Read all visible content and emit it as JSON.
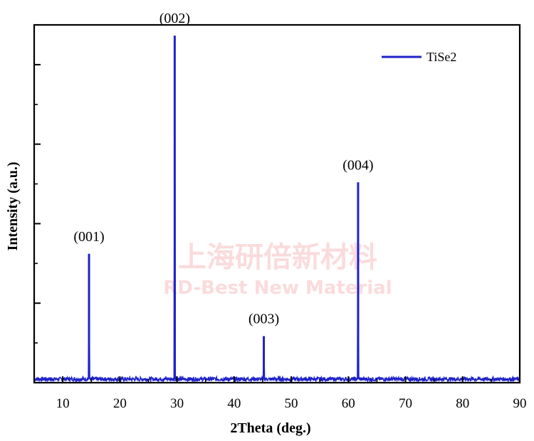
{
  "chart_data": {
    "type": "line",
    "xlabel": "2Theta (deg.)",
    "ylabel": "Intensity (a.u.)",
    "xlim": [
      5,
      90
    ],
    "ylim": [
      0,
      100
    ],
    "x_ticks": [
      10,
      20,
      30,
      40,
      50,
      60,
      70,
      80,
      90
    ],
    "y_tick_labels_shown": false,
    "legend": {
      "position": "top-right",
      "entries": [
        "TiSe2"
      ]
    },
    "series": [
      {
        "name": "TiSe2",
        "color": "#1f22c8",
        "baseline": 1,
        "peaks": [
          {
            "x": 14.6,
            "y": 36
          },
          {
            "x": 29.6,
            "y": 97
          },
          {
            "x": 45.2,
            "y": 13
          },
          {
            "x": 61.7,
            "y": 56
          }
        ]
      }
    ],
    "annotations": [
      {
        "text": "(001)",
        "x": 14.6
      },
      {
        "text": "(002)",
        "x": 29.6
      },
      {
        "text": "(003)",
        "x": 45.2
      },
      {
        "text": "(004)",
        "x": 61.7
      }
    ]
  },
  "watermark": {
    "line1": "上海研倍新材料",
    "line2": "RD-Best New Material"
  }
}
